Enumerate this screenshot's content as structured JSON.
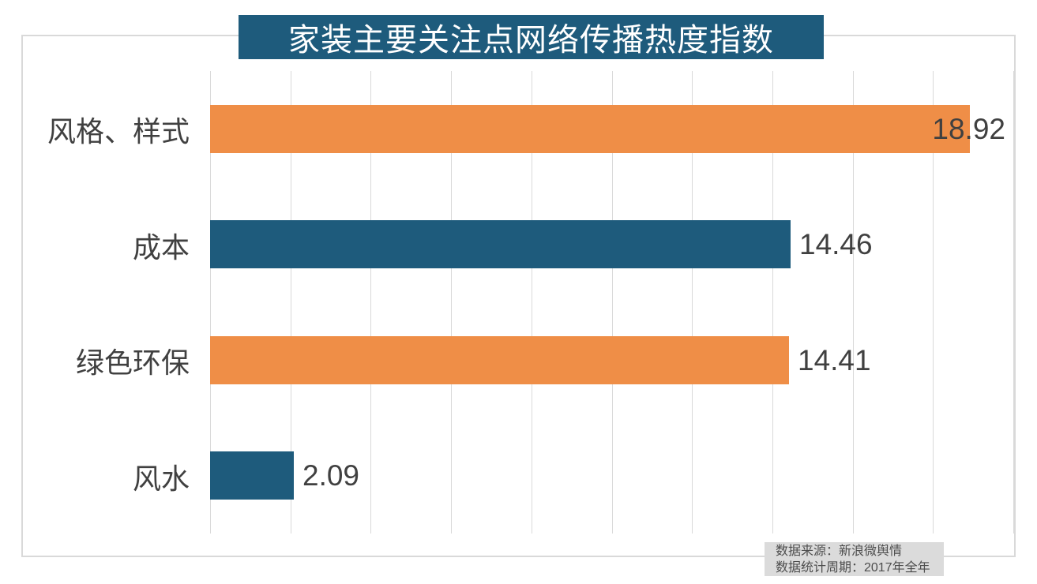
{
  "chart": {
    "title": "家装主要关注点网络传播热度指数",
    "title_bg_color": "#1E5B7C",
    "title_text_color": "#FFFFFF"
  },
  "chart_data": {
    "type": "bar",
    "orientation": "horizontal",
    "title": "家装主要关注点网络传播热度指数",
    "categories": [
      "风格、样式",
      "成本",
      "绿色环保",
      "风水"
    ],
    "values": [
      18.92,
      14.46,
      14.41,
      2.09
    ],
    "data_labels": [
      "18.92",
      "14.46",
      "14.41",
      "2.09"
    ],
    "bar_colors": [
      "#EF8E47",
      "#1E5B7C",
      "#EF8E47",
      "#1E5B7C"
    ],
    "xlim": [
      0,
      20
    ],
    "x_major_unit": 2,
    "grid": true,
    "legend_position": "none",
    "axis_tick_labels_visible": false
  },
  "source_note": {
    "line1": "数据来源：新浪微舆情",
    "line2": "数据统计周期：2017年全年",
    "bg_color": "#DBDBDB",
    "text_color": "#4D4D4D"
  },
  "style": {
    "grid_color": "#D9D9D9",
    "frame_border_color": "#D9D9D9",
    "label_color": "#404040"
  }
}
